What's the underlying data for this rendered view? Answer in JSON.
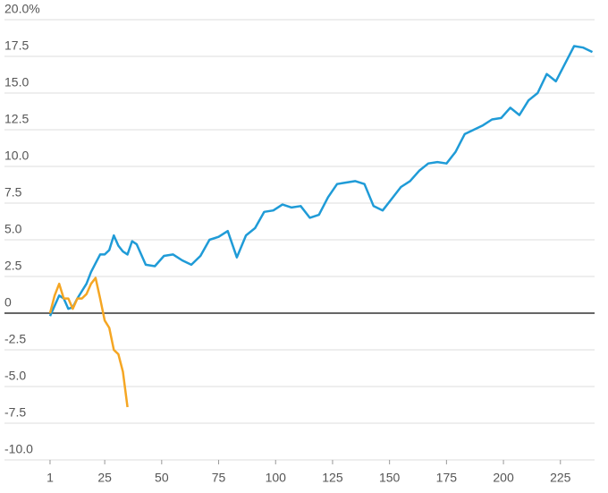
{
  "chart_data": {
    "type": "line",
    "x": [
      1,
      3,
      5,
      7,
      9,
      11,
      13,
      15,
      17,
      19,
      21,
      23,
      25,
      27,
      29,
      31,
      33,
      35,
      37,
      39,
      43,
      47,
      51,
      55,
      59,
      63,
      67,
      71,
      75,
      79,
      83,
      87,
      91,
      95,
      99,
      103,
      107,
      111,
      115,
      119,
      123,
      127,
      131,
      135,
      139,
      143,
      147,
      151,
      155,
      159,
      163,
      167,
      171,
      175,
      179,
      183,
      187,
      191,
      195,
      199,
      203,
      207,
      211,
      215,
      219,
      223,
      227,
      231,
      235,
      239
    ],
    "series": [
      {
        "color": "#1f9bd7",
        "values": [
          -0.2,
          0.5,
          1.2,
          1.0,
          0.3,
          0.4,
          1.0,
          1.5,
          2.0,
          2.8,
          3.4,
          4.0,
          4.0,
          4.3,
          5.3,
          4.6,
          4.2,
          4.0,
          4.9,
          4.7,
          3.3,
          3.2,
          3.9,
          4.0,
          3.6,
          3.3,
          3.9,
          5.0,
          5.2,
          5.6,
          3.8,
          5.3,
          5.8,
          6.9,
          7.0,
          7.4,
          7.2,
          7.3,
          6.5,
          6.7,
          7.9,
          8.8,
          8.9,
          9.0,
          8.8,
          7.3,
          7.0,
          7.8,
          8.6,
          9.0,
          9.7,
          10.2,
          10.3,
          10.2,
          11.0,
          12.2,
          12.5,
          12.8,
          13.2,
          13.3,
          14.0,
          13.5,
          14.5,
          15.0,
          16.3,
          15.8,
          17.0,
          18.2,
          18.1,
          17.8
        ]
      },
      {
        "color": "#f5a623",
        "values": [
          0,
          1.2,
          2.0,
          1.0,
          1.0,
          0.3,
          1.0,
          1.0,
          1.3,
          2.0,
          2.4,
          1.0,
          -0.5,
          -1.0,
          -2.5,
          -2.8,
          -4.0,
          -6.4,
          null,
          null,
          null,
          null,
          null,
          null,
          null,
          null,
          null,
          null,
          null,
          null,
          null,
          null,
          null,
          null,
          null,
          null,
          null,
          null,
          null,
          null,
          null,
          null,
          null,
          null,
          null,
          null,
          null,
          null,
          null,
          null,
          null,
          null,
          null,
          null,
          null,
          null,
          null,
          null,
          null,
          null,
          null,
          null,
          null,
          null,
          null,
          null,
          null,
          null,
          null,
          null
        ]
      }
    ],
    "xlim": [
      -19,
      240
    ],
    "xticks": [
      1,
      25,
      50,
      75,
      100,
      125,
      150,
      175,
      200,
      225
    ],
    "ylim": [
      -10,
      20
    ],
    "yticks": [
      {
        "value": -10,
        "label": "-10.0"
      },
      {
        "value": -7.5,
        "label": "-7.5"
      },
      {
        "value": -5,
        "label": "-5.0"
      },
      -2.5,
      0,
      2.5,
      {
        "value": 5,
        "label": "5.0"
      },
      7.5,
      {
        "value": 10,
        "label": "10.0"
      },
      12.5,
      {
        "value": 15,
        "label": "15.0"
      },
      17.5,
      {
        "value": 20,
        "label": "20.0%"
      }
    ],
    "grid": true
  }
}
